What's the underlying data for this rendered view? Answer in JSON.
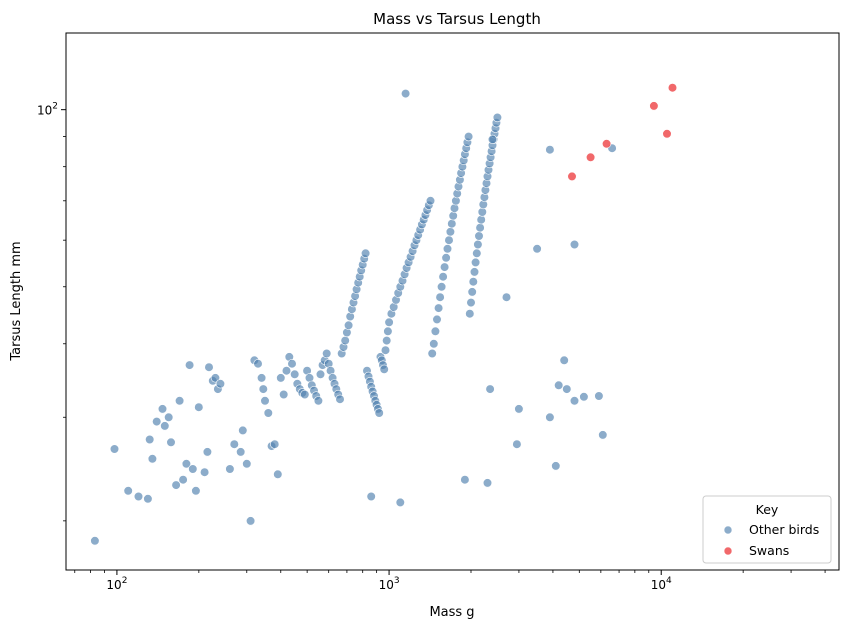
{
  "chart_data": {
    "type": "scatter",
    "title": "Mass vs Tarsus Length",
    "xlabel": "Mass g",
    "ylabel": "Tarsus Length mm",
    "xscale": "log",
    "yscale": "log",
    "xlim": [
      65,
      45000
    ],
    "ylim": [
      16.5,
      135
    ],
    "grid": false,
    "legend": {
      "title": "Key",
      "placement": "lower-right"
    },
    "x_ticks": [
      {
        "value": 100,
        "base": "10",
        "exp": "2"
      },
      {
        "value": 1000,
        "base": "10",
        "exp": "3"
      },
      {
        "value": 10000,
        "base": "10",
        "exp": "4"
      }
    ],
    "y_ticks": [
      {
        "value": 100,
        "base": "10",
        "exp": "2"
      }
    ],
    "series": [
      {
        "name": "Other birds",
        "color": "#4f7fae",
        "points": [
          [
            83,
            18.5
          ],
          [
            98,
            26.5
          ],
          [
            110,
            22.5
          ],
          [
            120,
            22
          ],
          [
            130,
            21.8
          ],
          [
            132,
            27.5
          ],
          [
            135,
            25.5
          ],
          [
            140,
            29.5
          ],
          [
            150,
            29
          ],
          [
            147,
            31
          ],
          [
            155,
            30
          ],
          [
            158,
            27.2
          ],
          [
            165,
            23
          ],
          [
            170,
            32
          ],
          [
            175,
            23.5
          ],
          [
            180,
            25
          ],
          [
            185,
            36.8
          ],
          [
            190,
            24.5
          ],
          [
            195,
            22.5
          ],
          [
            200,
            31.2
          ],
          [
            210,
            24.2
          ],
          [
            215,
            26.2
          ],
          [
            218,
            36.5
          ],
          [
            225,
            34.6
          ],
          [
            230,
            35
          ],
          [
            235,
            33.5
          ],
          [
            240,
            34.2
          ],
          [
            260,
            24.5
          ],
          [
            270,
            27
          ],
          [
            285,
            26.2
          ],
          [
            290,
            28.5
          ],
          [
            300,
            25
          ],
          [
            310,
            20
          ],
          [
            320,
            37.5
          ],
          [
            330,
            37
          ],
          [
            340,
            35
          ],
          [
            345,
            33.5
          ],
          [
            350,
            32
          ],
          [
            360,
            30.5
          ],
          [
            370,
            26.8
          ],
          [
            380,
            27
          ],
          [
            390,
            24
          ],
          [
            400,
            35
          ],
          [
            410,
            32.8
          ],
          [
            420,
            36
          ],
          [
            430,
            38
          ],
          [
            440,
            37
          ],
          [
            450,
            35.5
          ],
          [
            460,
            34.2
          ],
          [
            470,
            33.5
          ],
          [
            480,
            33
          ],
          [
            490,
            32.8
          ],
          [
            500,
            36
          ],
          [
            510,
            35
          ],
          [
            520,
            34
          ],
          [
            530,
            33.3
          ],
          [
            540,
            32.6
          ],
          [
            550,
            32
          ],
          [
            560,
            35.5
          ],
          [
            570,
            36.8
          ],
          [
            580,
            37.5
          ],
          [
            590,
            38.5
          ],
          [
            600,
            37
          ],
          [
            610,
            36
          ],
          [
            620,
            35
          ],
          [
            630,
            34.2
          ],
          [
            640,
            33.5
          ],
          [
            650,
            32.8
          ],
          [
            660,
            32.2
          ],
          [
            670,
            38.5
          ],
          [
            680,
            39.5
          ],
          [
            690,
            40.5
          ],
          [
            700,
            41.8
          ],
          [
            710,
            43
          ],
          [
            720,
            44.5
          ],
          [
            730,
            45.8
          ],
          [
            740,
            47
          ],
          [
            750,
            48.2
          ],
          [
            760,
            49.5
          ],
          [
            770,
            50.8
          ],
          [
            780,
            52
          ],
          [
            790,
            53.3
          ],
          [
            800,
            54.5
          ],
          [
            810,
            55.8
          ],
          [
            820,
            57
          ],
          [
            830,
            36
          ],
          [
            840,
            35.2
          ],
          [
            850,
            34.5
          ],
          [
            860,
            33.8
          ],
          [
            870,
            33.2
          ],
          [
            880,
            32.6
          ],
          [
            890,
            32
          ],
          [
            900,
            31.5
          ],
          [
            910,
            31
          ],
          [
            920,
            30.5
          ],
          [
            930,
            38
          ],
          [
            940,
            37.5
          ],
          [
            950,
            36.8
          ],
          [
            960,
            36.2
          ],
          [
            970,
            39
          ],
          [
            980,
            40.5
          ],
          [
            990,
            42
          ],
          [
            1000,
            43.5
          ],
          [
            1020,
            45
          ],
          [
            1040,
            46.2
          ],
          [
            1060,
            47.5
          ],
          [
            1080,
            48.8
          ],
          [
            1100,
            50
          ],
          [
            1120,
            51.2
          ],
          [
            1140,
            52.5
          ],
          [
            1160,
            53.8
          ],
          [
            1180,
            55
          ],
          [
            1200,
            56.2
          ],
          [
            1220,
            57.5
          ],
          [
            1240,
            58.8
          ],
          [
            1260,
            60
          ],
          [
            1280,
            61.2
          ],
          [
            1300,
            62.5
          ],
          [
            1320,
            63.8
          ],
          [
            1340,
            65
          ],
          [
            1360,
            66.2
          ],
          [
            1380,
            67.5
          ],
          [
            1400,
            68.8
          ],
          [
            1420,
            70
          ],
          [
            1440,
            38.5
          ],
          [
            1460,
            40
          ],
          [
            1480,
            42
          ],
          [
            1500,
            44
          ],
          [
            1520,
            46
          ],
          [
            1540,
            48
          ],
          [
            1560,
            50
          ],
          [
            1580,
            52
          ],
          [
            1600,
            54
          ],
          [
            1620,
            56
          ],
          [
            1640,
            58
          ],
          [
            1660,
            60
          ],
          [
            1680,
            62
          ],
          [
            1700,
            64
          ],
          [
            1720,
            66
          ],
          [
            1740,
            68
          ],
          [
            1760,
            70
          ],
          [
            1780,
            72
          ],
          [
            1800,
            74
          ],
          [
            1820,
            76
          ],
          [
            1840,
            78
          ],
          [
            1860,
            80
          ],
          [
            1880,
            82
          ],
          [
            1900,
            84
          ],
          [
            1920,
            86
          ],
          [
            1940,
            88
          ],
          [
            1960,
            90
          ],
          [
            1980,
            45
          ],
          [
            2000,
            47
          ],
          [
            2020,
            49
          ],
          [
            2040,
            51
          ],
          [
            2060,
            53
          ],
          [
            2080,
            55
          ],
          [
            2100,
            57
          ],
          [
            2120,
            59
          ],
          [
            2140,
            61
          ],
          [
            2160,
            63
          ],
          [
            2180,
            65
          ],
          [
            2200,
            67
          ],
          [
            2220,
            69
          ],
          [
            2240,
            71
          ],
          [
            2260,
            73
          ],
          [
            2280,
            75
          ],
          [
            2300,
            77
          ],
          [
            2320,
            79
          ],
          [
            2340,
            81
          ],
          [
            2360,
            83
          ],
          [
            2380,
            85
          ],
          [
            2400,
            87
          ],
          [
            2420,
            89
          ],
          [
            2440,
            91
          ],
          [
            2460,
            93
          ],
          [
            2480,
            95
          ],
          [
            2500,
            97
          ],
          [
            860,
            22
          ],
          [
            1100,
            21.5
          ],
          [
            1900,
            23.5
          ],
          [
            2300,
            23.2
          ],
          [
            2350,
            33.5
          ],
          [
            2950,
            27
          ],
          [
            3000,
            31
          ],
          [
            3900,
            30
          ],
          [
            4100,
            24.8
          ],
          [
            4200,
            34
          ],
          [
            4400,
            37.5
          ],
          [
            4500,
            33.5
          ],
          [
            4800,
            32
          ],
          [
            5200,
            32.5
          ],
          [
            5900,
            32.6
          ],
          [
            6100,
            28
          ],
          [
            4800,
            59
          ],
          [
            6600,
            86
          ],
          [
            3500,
            58
          ],
          [
            2700,
            48
          ],
          [
            1150,
            106.5
          ],
          [
            2400,
            89
          ],
          [
            3900,
            85.5
          ]
        ]
      },
      {
        "name": "Swans",
        "color": "#f0585a",
        "points": [
          [
            4700,
            77
          ],
          [
            5500,
            83
          ],
          [
            6300,
            87.5
          ],
          [
            9400,
            101.5
          ],
          [
            10500,
            91
          ],
          [
            11000,
            109
          ]
        ]
      }
    ]
  }
}
